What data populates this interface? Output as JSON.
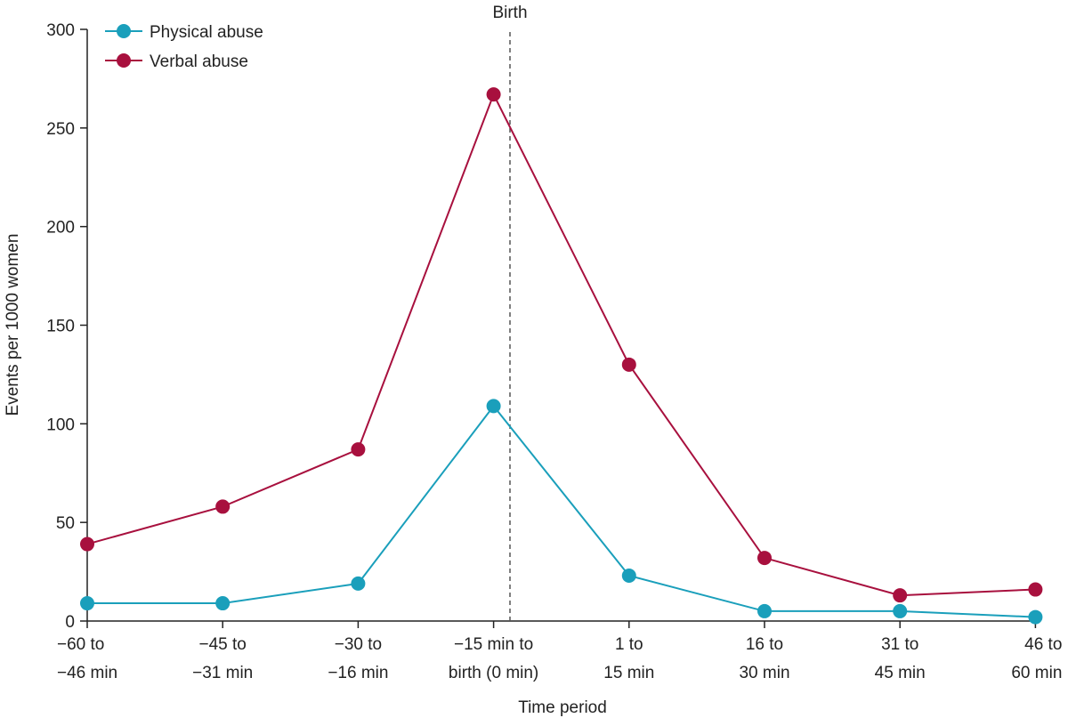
{
  "chart_data": {
    "type": "line",
    "xlabel": "Time period",
    "ylabel": "Events per 1000 women",
    "ylim": [
      0,
      300
    ],
    "yticks": [
      0,
      50,
      100,
      150,
      200,
      250,
      300
    ],
    "grid": false,
    "legend_position": "top-left",
    "categories": [
      [
        "−60 to",
        "−46 min"
      ],
      [
        "−45 to",
        "−31 min"
      ],
      [
        "−30 to",
        "−16 min"
      ],
      [
        "−15 min to",
        "birth (0 min)"
      ],
      [
        "1 to",
        "15 min"
      ],
      [
        "16 to",
        "30 min"
      ],
      [
        "31 to",
        "45 min"
      ],
      [
        "46 to",
        "60 min"
      ]
    ],
    "series": [
      {
        "name": "Physical abuse",
        "color": "#1a9fbb",
        "values": [
          9,
          9,
          19,
          109,
          23,
          5,
          5,
          2
        ]
      },
      {
        "name": "Verbal abuse",
        "color": "#a8103e",
        "values": [
          39,
          58,
          87,
          267,
          130,
          32,
          13,
          16
        ]
      }
    ],
    "annotations": [
      {
        "text": "Birth",
        "style": "dashed-vertical-line",
        "position": "between -15 min to birth and 1 to 15 min"
      }
    ]
  }
}
